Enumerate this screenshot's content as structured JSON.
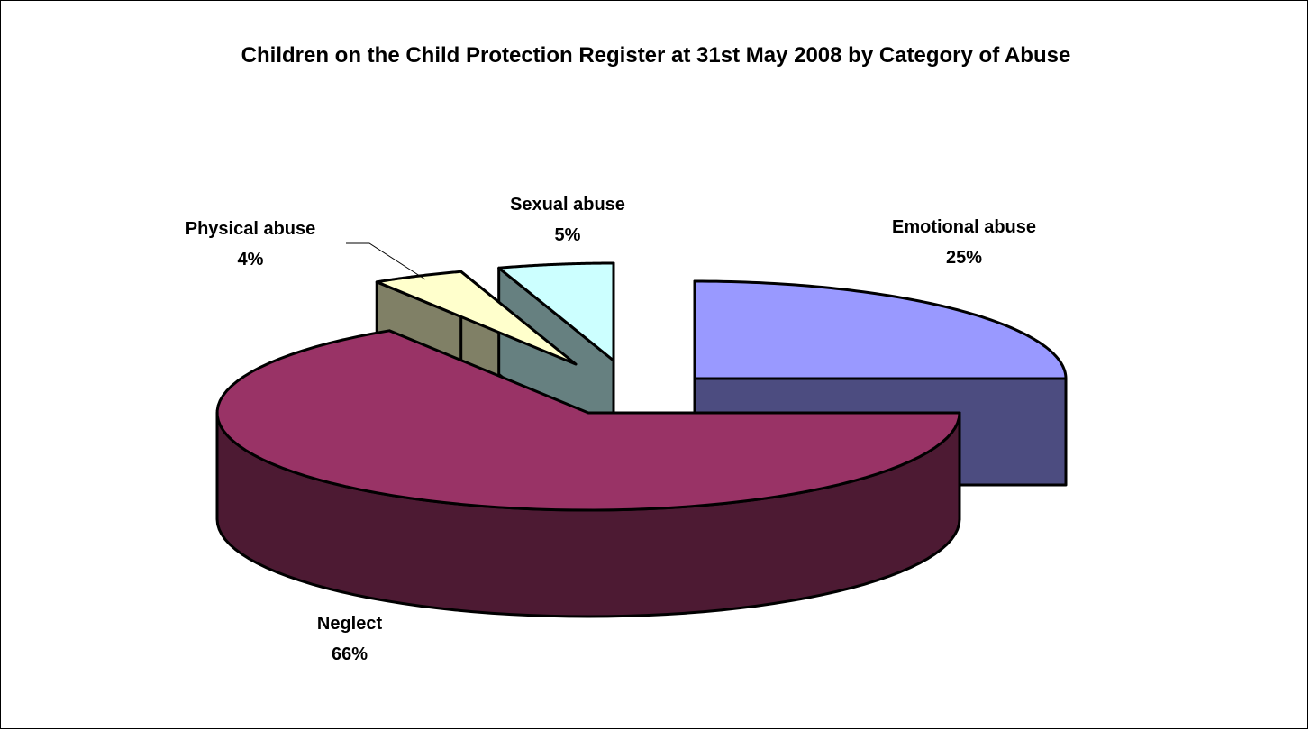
{
  "chart_data": {
    "type": "pie",
    "title": "Children on the Child Protection Register at 31st May 2008 by Category of Abuse",
    "slices": [
      {
        "name": "Emotional abuse",
        "value": 25,
        "label": "25%",
        "top_color": "#9999FF",
        "side_color": "#4C4C80"
      },
      {
        "name": "Neglect",
        "value": 66,
        "label": "66%",
        "top_color": "#993366",
        "side_color": "#4D1A33"
      },
      {
        "name": "Physical abuse",
        "value": 4,
        "label": "4%",
        "top_color": "#FFFFCC",
        "side_color": "#808066"
      },
      {
        "name": "Sexual abuse",
        "value": 5,
        "label": "5%",
        "top_color": "#CCFFFF",
        "side_color": "#668080"
      }
    ],
    "style": "3d-exploded",
    "legend": "none",
    "data_labels": "category-and-percent"
  }
}
